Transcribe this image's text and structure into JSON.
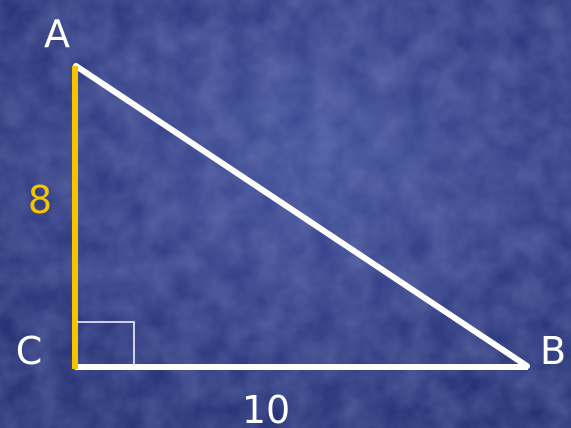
{
  "colors": {
    "background_dark": "#24307a",
    "background_light": "#3a4890",
    "line": "#ffffff",
    "highlight": "#f5c400"
  },
  "vertices": {
    "a": "A",
    "b": "B",
    "c": "C"
  },
  "sides": {
    "ac_length": "8",
    "cb_length": "10"
  },
  "right_angle_at": "C"
}
